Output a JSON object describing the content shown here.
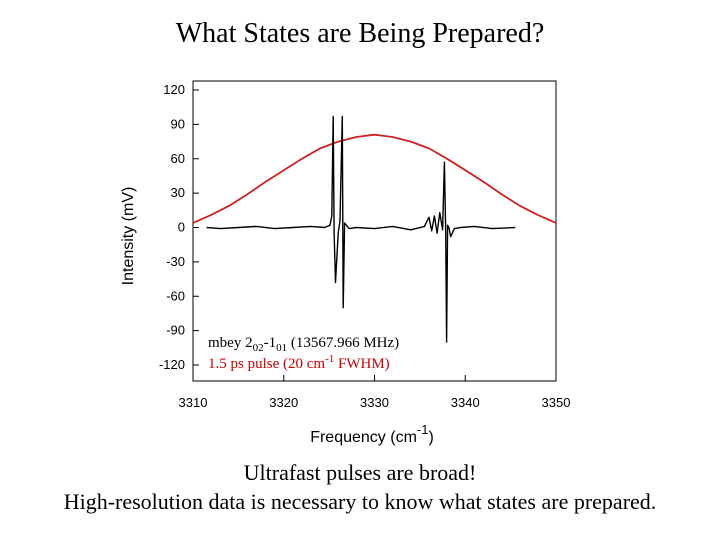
{
  "title": "What States are Being Prepared?",
  "captions": [
    "Ultrafast pulses are broad!",
    "High-resolution data is necessary to know what states are prepared."
  ],
  "chart_data": {
    "type": "line",
    "xlabel": "Frequency (cm",
    "xlabel_sup": "-1",
    "xlabel_close": ")",
    "ylabel": "Intensity (mV)",
    "xlim": [
      3310,
      3350
    ],
    "ylim": [
      -130,
      120
    ],
    "xticks": [
      3310,
      3320,
      3330,
      3340,
      3350
    ],
    "yticks": [
      120,
      90,
      60,
      30,
      0,
      -30,
      -60,
      -90,
      -120
    ],
    "grid": false,
    "annotations": [
      {
        "color": "#000000",
        "parts": [
          {
            "text": "mbey 2",
            "style": "normal"
          },
          {
            "text": "02",
            "style": "sub"
          },
          {
            "text": "-1",
            "style": "normal"
          },
          {
            "text": "01",
            "style": "sub"
          },
          {
            "text": " (13567.966 MHz)",
            "style": "normal"
          }
        ]
      },
      {
        "color": "#cc0000",
        "parts": [
          {
            "text": "1.5 ps pulse (20 cm",
            "style": "normal"
          },
          {
            "text": "-1",
            "style": "sup"
          },
          {
            "text": " FWHM)",
            "style": "normal"
          }
        ]
      }
    ],
    "series": [
      {
        "color": "#cc2222",
        "x": [
          3310,
          3312,
          3314,
          3316,
          3318,
          3320,
          3322,
          3324,
          3326,
          3328,
          3330,
          3332,
          3334,
          3336,
          3338,
          3340,
          3342,
          3344,
          3346,
          3348,
          3350
        ],
        "y": [
          4,
          11,
          19,
          29,
          40,
          50,
          60,
          69,
          75,
          79,
          81,
          79,
          75,
          69,
          60,
          50,
          40,
          29,
          19,
          11,
          4
        ]
      },
      {
        "color": "#000000",
        "x": [
          3311.5,
          3313,
          3315,
          3317,
          3319,
          3321,
          3323,
          3324.5,
          3325.1,
          3325.3,
          3325.45,
          3325.55,
          3325.7,
          3326.0,
          3326.2,
          3326.45,
          3326.55,
          3326.7,
          3327.2,
          3328,
          3330,
          3332,
          3334,
          3335.5,
          3336.0,
          3336.3,
          3336.6,
          3336.9,
          3337.2,
          3337.5,
          3337.7,
          3337.85,
          3337.95,
          3338.05,
          3338.2,
          3338.4,
          3338.8,
          3339.5,
          3341,
          3343,
          3345.5
        ],
        "y": [
          0,
          -1,
          0,
          1,
          -1,
          0,
          1,
          0,
          2,
          10,
          97,
          -4,
          -48,
          -5,
          6,
          97,
          -70,
          4,
          -1,
          0,
          -1,
          1,
          -2,
          1,
          9,
          -3,
          10,
          -5,
          13,
          -2,
          57,
          -4,
          -100,
          2,
          0,
          -8,
          -1,
          0,
          1,
          -1,
          0
        ]
      }
    ]
  }
}
